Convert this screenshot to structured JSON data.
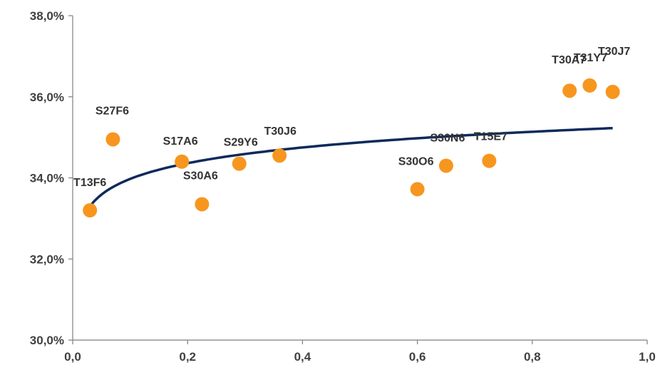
{
  "chart_data": {
    "type": "scatter",
    "x_ticks": [
      "0,0",
      "0,2",
      "0,4",
      "0,6",
      "0,8",
      "1,0"
    ],
    "y_ticks": [
      "30,0%",
      "32,0%",
      "34,0%",
      "36,0%",
      "38,0%"
    ],
    "xlim": [
      0,
      1.0
    ],
    "ylim": [
      30.0,
      38.0
    ],
    "grid": false,
    "points": [
      {
        "label": "T13F6",
        "x": 0.03,
        "y": 33.2
      },
      {
        "label": "S27F6",
        "x": 0.07,
        "y": 34.95
      },
      {
        "label": "S17A6",
        "x": 0.19,
        "y": 34.4
      },
      {
        "label": "S30A6",
        "x": 0.225,
        "y": 33.35
      },
      {
        "label": "S29Y6",
        "x": 0.29,
        "y": 34.35
      },
      {
        "label": "T30J6",
        "x": 0.36,
        "y": 34.55
      },
      {
        "label": "S30O6",
        "x": 0.6,
        "y": 33.72
      },
      {
        "label": "S30N6",
        "x": 0.65,
        "y": 34.3
      },
      {
        "label": "T15E7",
        "x": 0.725,
        "y": 34.42
      },
      {
        "label": "T30A7",
        "x": 0.865,
        "y": 36.15
      },
      {
        "label": "T31Y7",
        "x": 0.9,
        "y": 36.28
      },
      {
        "label": "T30J7",
        "x": 0.94,
        "y": 36.12
      }
    ],
    "trendline": {
      "type": "logarithmic",
      "x_start": 0.03,
      "x_end": 0.94
    },
    "colors": {
      "points": "#f7961f",
      "trendline": "#0e2a5c",
      "axis": "#7f7f7f",
      "text": "#404040"
    }
  }
}
